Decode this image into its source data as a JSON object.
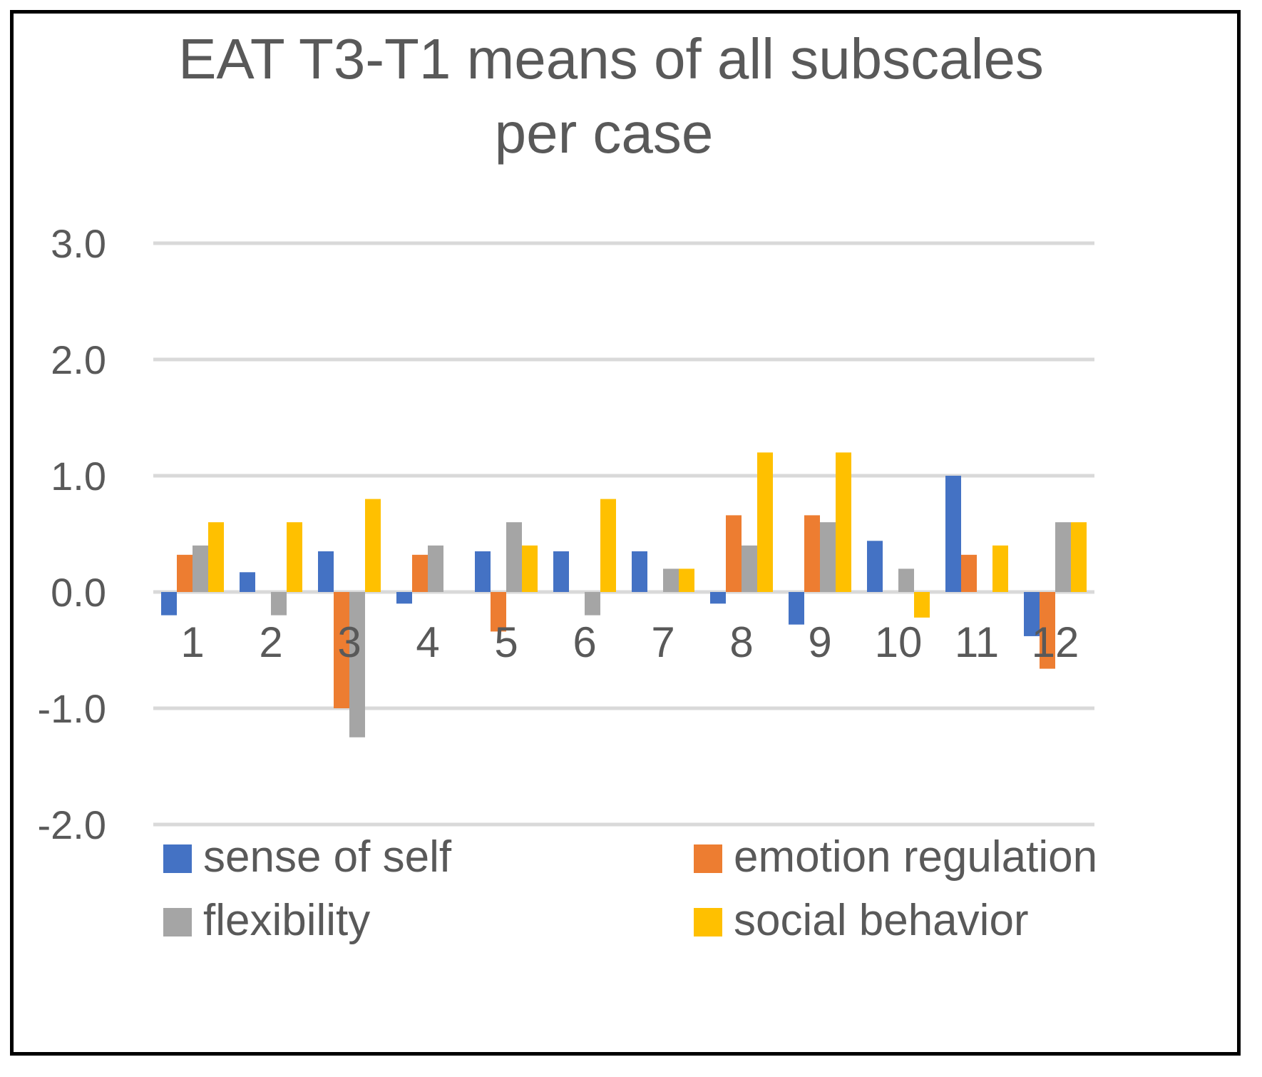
{
  "chart_data": {
    "type": "bar",
    "title_lines": [
      "EAT T3-T1 means of all subscales",
      "per case"
    ],
    "title": "EAT T3-T1 means of all subscales per case",
    "xlabel": "",
    "ylabel": "",
    "ylim": [
      -2.0,
      3.0
    ],
    "yticks": [
      3.0,
      2.0,
      1.0,
      0.0,
      -1.0,
      -2.0
    ],
    "ytick_labels": [
      "3.0",
      "2.0",
      "1.0",
      "0.0",
      "-1.0",
      "-2.0"
    ],
    "categories": [
      "1",
      "2",
      "3",
      "4",
      "5",
      "6",
      "7",
      "8",
      "9",
      "10",
      "11",
      "12"
    ],
    "grid": true,
    "legend_position": "bottom",
    "series": [
      {
        "name": "sense of self",
        "color": "#4472C4",
        "values": [
          -0.2,
          0.17,
          0.35,
          -0.1,
          0.35,
          0.35,
          0.35,
          -0.1,
          -0.28,
          0.44,
          1.0,
          -0.38
        ]
      },
      {
        "name": "emotion regulation",
        "color": "#ED7D31",
        "values": [
          0.32,
          0,
          -1.0,
          0.32,
          -0.34,
          0,
          0,
          0.66,
          0.66,
          0,
          0.32,
          -0.66
        ]
      },
      {
        "name": "flexibility",
        "color": "#A5A5A5",
        "values": [
          0.4,
          -0.2,
          -1.25,
          0.4,
          0.6,
          -0.2,
          0.2,
          0.4,
          0.6,
          0.2,
          0,
          0.6
        ]
      },
      {
        "name": "social behavior",
        "color": "#FFC000",
        "values": [
          0.6,
          0.6,
          0.8,
          0,
          0.4,
          0.8,
          0.2,
          1.2,
          1.2,
          -0.22,
          0.4,
          0.6
        ]
      }
    ]
  }
}
